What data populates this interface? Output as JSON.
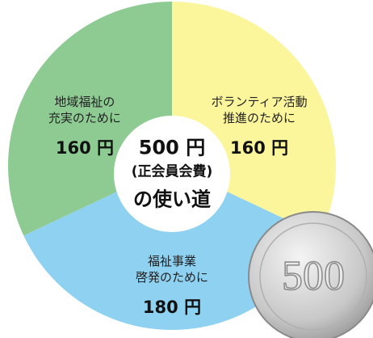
{
  "chart_data": {
    "type": "pie",
    "center_text": [
      "500 円",
      "(正会員会費)",
      "の使い道"
    ],
    "categories": [
      "ボランティア活動\n推進のために",
      "福祉事業\n啓発のために",
      "地域福祉の\n充実のために"
    ],
    "values": [
      160,
      180,
      160
    ],
    "value_labels": [
      "160 円",
      "180 円",
      "160 円"
    ],
    "colors": [
      "#fbf59b",
      "#8fd1f1",
      "#8ecb93"
    ],
    "coin_text": "500"
  }
}
